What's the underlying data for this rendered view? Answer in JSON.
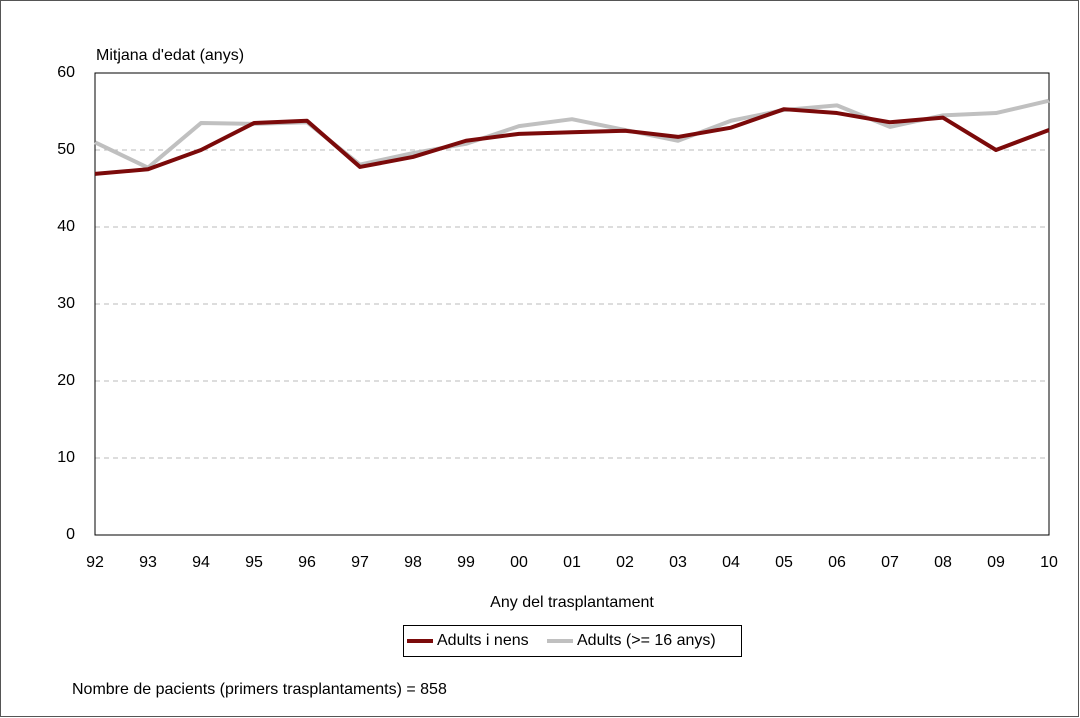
{
  "chart_data": {
    "type": "line",
    "y_label": "Mitjana d'edat (anys)",
    "x_label": "Any del trasplantament",
    "note": "Nombre de pacients (primers trasplantaments) = 858",
    "categories": [
      "92",
      "93",
      "94",
      "95",
      "96",
      "97",
      "98",
      "99",
      "00",
      "01",
      "02",
      "03",
      "04",
      "05",
      "06",
      "07",
      "08",
      "09",
      "10"
    ],
    "series": [
      {
        "name": "Adults i nens",
        "color": "#7b0a0a",
        "values": [
          46.9,
          47.5,
          50.0,
          53.5,
          53.8,
          47.8,
          49.1,
          51.2,
          52.1,
          52.3,
          52.5,
          51.7,
          52.9,
          55.3,
          54.8,
          53.6,
          54.2,
          50.0,
          52.6
        ]
      },
      {
        "name": "Adults (>= 16 anys)",
        "color": "#c0c0c0",
        "values": [
          51.0,
          47.7,
          53.5,
          53.4,
          53.6,
          48.1,
          49.6,
          50.8,
          53.1,
          54.0,
          52.6,
          51.2,
          53.8,
          55.2,
          55.8,
          53.0,
          54.5,
          54.8,
          56.4
        ]
      }
    ],
    "ylim": [
      0,
      60
    ],
    "yticks": [
      0,
      10,
      20,
      30,
      40,
      50,
      60
    ],
    "grid": true
  }
}
